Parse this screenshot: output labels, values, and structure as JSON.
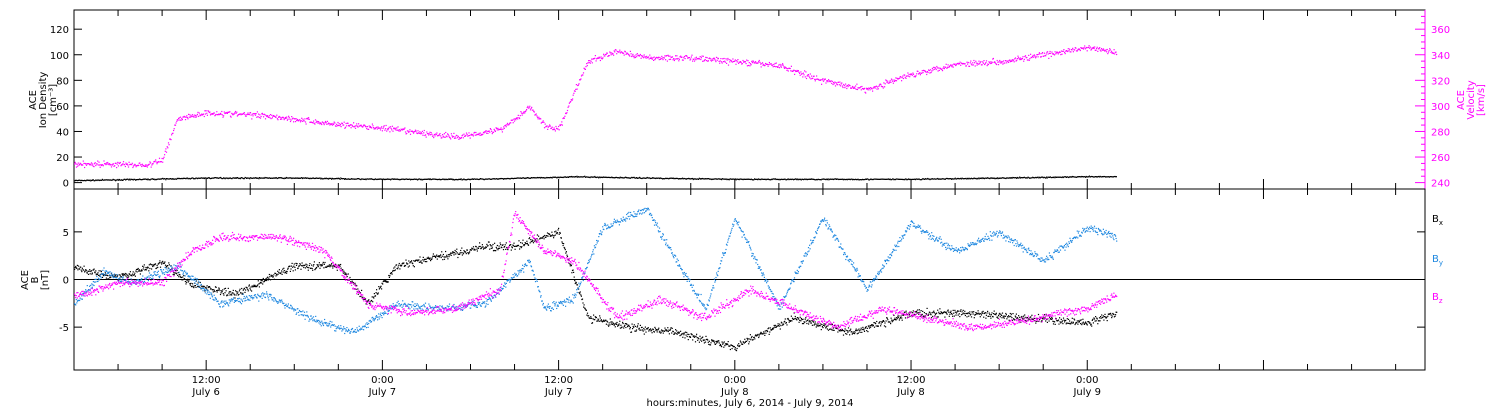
{
  "colors": {
    "black": "#000000",
    "magenta": "#ff00ff",
    "blue": "#1f88e0"
  },
  "time_axis": {
    "start": "2014-07-06 03:00",
    "end": "2014-07-09 23:00",
    "tick_labels": [
      {
        "time": "12:00",
        "day": "July 6"
      },
      {
        "time": "0:00",
        "day": "July 7"
      },
      {
        "time": "12:00",
        "day": "July 7"
      },
      {
        "time": "0:00",
        "day": "July 8"
      },
      {
        "time": "12:00",
        "day": "July 8"
      },
      {
        "time": "0:00",
        "day": "July 9"
      }
    ],
    "xlabel": "hours:minutes, July  6, 2014 - July  9, 2014"
  },
  "chart_data": [
    {
      "type": "scatter",
      "panel": "top",
      "ylabel_left": [
        "ACE",
        "Ion Density",
        "[cm⁻³]"
      ],
      "ylabel_right": [
        "ACE",
        "Velocity",
        "[km/s]"
      ],
      "ylim_left": [
        -5,
        135
      ],
      "ylim_right": [
        235,
        375
      ],
      "yticks_left": [
        0,
        20,
        40,
        60,
        80,
        100,
        120
      ],
      "yticks_right": [
        240,
        260,
        280,
        300,
        320,
        340,
        360
      ],
      "grid": false,
      "series": [
        {
          "color": "#000000",
          "axis": "left",
          "points": [
            [
              "2014-07-06 03:00",
              2
            ],
            [
              "2014-07-06 08:00",
              3
            ],
            [
              "2014-07-06 12:00",
              4
            ],
            [
              "2014-07-06 18:00",
              4
            ],
            [
              "2014-07-07 00:00",
              3
            ],
            [
              "2014-07-07 06:00",
              3
            ],
            [
              "2014-07-07 10:00",
              4
            ],
            [
              "2014-07-07 13:00",
              5
            ],
            [
              "2014-07-07 18:00",
              4
            ],
            [
              "2014-07-08 00:00",
              3
            ],
            [
              "2014-07-08 06:00",
              3
            ],
            [
              "2014-07-08 12:00",
              3
            ],
            [
              "2014-07-08 18:00",
              4
            ],
            [
              "2014-07-09 00:00",
              5
            ],
            [
              "2014-07-09 02:00",
              5
            ]
          ]
        },
        {
          "color": "#ff00ff",
          "axis": "right",
          "points": [
            [
              "2014-07-06 03:00",
              255
            ],
            [
              "2014-07-06 05:00",
              255
            ],
            [
              "2014-07-06 08:00",
              254
            ],
            [
              "2014-07-06 09:00",
              258
            ],
            [
              "2014-07-06 10:00",
              290
            ],
            [
              "2014-07-06 12:00",
              295
            ],
            [
              "2014-07-06 16:00",
              293
            ],
            [
              "2014-07-06 20:00",
              287
            ],
            [
              "2014-07-07 00:00",
              283
            ],
            [
              "2014-07-07 02:00",
              280
            ],
            [
              "2014-07-07 05:00",
              276
            ],
            [
              "2014-07-07 08:00",
              282
            ],
            [
              "2014-07-07 09:00",
              290
            ],
            [
              "2014-07-07 10:00",
              300
            ],
            [
              "2014-07-07 11:00",
              285
            ],
            [
              "2014-07-07 12:00",
              282
            ],
            [
              "2014-07-07 13:00",
              310
            ],
            [
              "2014-07-07 14:00",
              335
            ],
            [
              "2014-07-07 16:00",
              343
            ],
            [
              "2014-07-07 18:00",
              338
            ],
            [
              "2014-07-07 21:00",
              338
            ],
            [
              "2014-07-08 00:00",
              335
            ],
            [
              "2014-07-08 03:00",
              332
            ],
            [
              "2014-07-08 06:00",
              320
            ],
            [
              "2014-07-08 09:00",
              313
            ],
            [
              "2014-07-08 12:00",
              325
            ],
            [
              "2014-07-08 15:00",
              333
            ],
            [
              "2014-07-08 18:00",
              335
            ],
            [
              "2014-07-08 21:00",
              340
            ],
            [
              "2014-07-09 00:00",
              346
            ],
            [
              "2014-07-09 02:00",
              342
            ]
          ]
        }
      ]
    },
    {
      "type": "scatter",
      "panel": "bottom",
      "ylabel_left": [
        "ACE",
        "B",
        "[nT]"
      ],
      "ylim": [
        -9.5,
        9.5
      ],
      "yticks": [
        -5,
        0,
        5
      ],
      "grid": false,
      "legend": [
        "B",
        "B",
        "B"
      ],
      "legend_subscripts": [
        "x",
        "y",
        "z"
      ],
      "legend_position": "right",
      "series": [
        {
          "color": "#000000",
          "points": [
            [
              "2014-07-06 03:00",
              1.3
            ],
            [
              "2014-07-06 06:00",
              0.3
            ],
            [
              "2014-07-06 09:00",
              1.8
            ],
            [
              "2014-07-06 11:00",
              -0.5
            ],
            [
              "2014-07-06 14:00",
              -1.5
            ],
            [
              "2014-07-06 18:00",
              1.5
            ],
            [
              "2014-07-06 21:00",
              1.5
            ],
            [
              "2014-07-06 23:00",
              -2.5
            ],
            [
              "2014-07-07 01:00",
              1.5
            ],
            [
              "2014-07-07 04:00",
              2.5
            ],
            [
              "2014-07-07 07:00",
              3.5
            ],
            [
              "2014-07-07 09:00",
              3.5
            ],
            [
              "2014-07-07 12:00",
              5.0
            ],
            [
              "2014-07-07 14:00",
              -4.0
            ],
            [
              "2014-07-07 17:00",
              -5.0
            ],
            [
              "2014-07-07 20:00",
              -5.5
            ],
            [
              "2014-07-08 00:00",
              -7.0
            ],
            [
              "2014-07-08 04:00",
              -4.0
            ],
            [
              "2014-07-08 08:00",
              -5.5
            ],
            [
              "2014-07-08 12:00",
              -3.5
            ],
            [
              "2014-07-08 16:00",
              -3.5
            ],
            [
              "2014-07-08 20:00",
              -4.0
            ],
            [
              "2014-07-09 00:00",
              -4.5
            ],
            [
              "2014-07-09 02:00",
              -3.5
            ]
          ]
        },
        {
          "color": "#1f88e0",
          "points": [
            [
              "2014-07-06 03:00",
              -2.5
            ],
            [
              "2014-07-06 05:00",
              0.8
            ],
            [
              "2014-07-06 07:00",
              -0.3
            ],
            [
              "2014-07-06 10:00",
              1.5
            ],
            [
              "2014-07-06 13:00",
              -2.5
            ],
            [
              "2014-07-06 16:00",
              -1.5
            ],
            [
              "2014-07-06 19:00",
              -4.0
            ],
            [
              "2014-07-06 22:00",
              -5.5
            ],
            [
              "2014-07-07 01:00",
              -2.5
            ],
            [
              "2014-07-07 04:00",
              -3.0
            ],
            [
              "2014-07-07 07:00",
              -2.5
            ],
            [
              "2014-07-07 10:00",
              2.0
            ],
            [
              "2014-07-07 11:00",
              -3.0
            ],
            [
              "2014-07-07 13:00",
              -2.0
            ],
            [
              "2014-07-07 15:00",
              5.5
            ],
            [
              "2014-07-07 18:00",
              7.5
            ],
            [
              "2014-07-07 20:00",
              2.0
            ],
            [
              "2014-07-07 22:00",
              -3.0
            ],
            [
              "2014-07-08 00:00",
              6.5
            ],
            [
              "2014-07-08 03:00",
              -3.0
            ],
            [
              "2014-07-08 06:00",
              6.5
            ],
            [
              "2014-07-08 09:00",
              -1.0
            ],
            [
              "2014-07-08 12:00",
              6.0
            ],
            [
              "2014-07-08 15:00",
              3.0
            ],
            [
              "2014-07-08 18:00",
              5.0
            ],
            [
              "2014-07-08 21:00",
              2.0
            ],
            [
              "2014-07-09 00:00",
              5.5
            ],
            [
              "2014-07-09 02:00",
              4.5
            ]
          ]
        },
        {
          "color": "#ff00ff",
          "points": [
            [
              "2014-07-06 03:00",
              -1.8
            ],
            [
              "2014-07-06 06:00",
              -0.3
            ],
            [
              "2014-07-06 09:00",
              -0.3
            ],
            [
              "2014-07-06 11:00",
              3.0
            ],
            [
              "2014-07-06 13:00",
              4.5
            ],
            [
              "2014-07-06 17:00",
              4.5
            ],
            [
              "2014-07-06 20:00",
              3.0
            ],
            [
              "2014-07-06 23:00",
              -2.5
            ],
            [
              "2014-07-07 02:00",
              -3.5
            ],
            [
              "2014-07-07 05:00",
              -3.0
            ],
            [
              "2014-07-07 08:00",
              -1.0
            ],
            [
              "2014-07-07 09:00",
              7.0
            ],
            [
              "2014-07-07 11:00",
              3.0
            ],
            [
              "2014-07-07 13:00",
              2.0
            ],
            [
              "2014-07-07 16:00",
              -4.0
            ],
            [
              "2014-07-07 19:00",
              -2.0
            ],
            [
              "2014-07-07 22:00",
              -4.0
            ],
            [
              "2014-07-08 01:00",
              -1.0
            ],
            [
              "2014-07-08 04:00",
              -3.0
            ],
            [
              "2014-07-08 07:00",
              -5.0
            ],
            [
              "2014-07-08 10:00",
              -3.0
            ],
            [
              "2014-07-08 13:00",
              -4.0
            ],
            [
              "2014-07-08 16:00",
              -5.0
            ],
            [
              "2014-07-08 19:00",
              -4.5
            ],
            [
              "2014-07-08 22:00",
              -3.5
            ],
            [
              "2014-07-09 00:00",
              -3.0
            ],
            [
              "2014-07-09 02:00",
              -1.5
            ]
          ]
        }
      ]
    }
  ]
}
